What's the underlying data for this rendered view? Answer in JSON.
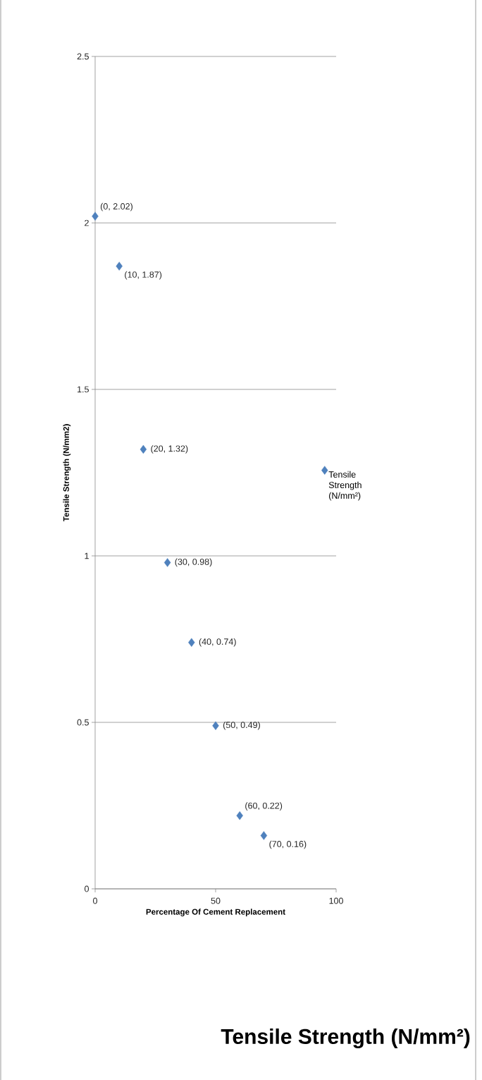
{
  "chart_data": {
    "type": "scatter",
    "title": "Tensile Strength (N/mm²)",
    "xlabel": "Percentage Of Cement Replacement",
    "ylabel": "Tensile Strength (N/mm2)",
    "x": [
      0,
      10,
      20,
      30,
      40,
      50,
      60,
      70
    ],
    "series": [
      {
        "name": "Tensile Strength (N/mm²)",
        "color": "#4f81bd",
        "values": [
          2.02,
          1.87,
          1.32,
          0.98,
          0.74,
          0.49,
          0.22,
          0.16
        ],
        "value_labels": [
          "(0, 2.02)",
          "(10, 1.87)",
          "(20, 1.32)",
          "(30, 0.98)",
          "(40, 0.74)",
          "(50, 0.49)",
          "(60, 0.22)",
          "(70, 0.16)"
        ]
      }
    ],
    "xlim": [
      0,
      100
    ],
    "xticks": [
      0,
      50,
      100
    ],
    "ylim": [
      0,
      2.5
    ],
    "yticks": [
      0,
      0.5,
      1,
      1.5,
      2,
      2.5
    ],
    "grid": "y",
    "legend": "right",
    "marker": "diamond"
  }
}
